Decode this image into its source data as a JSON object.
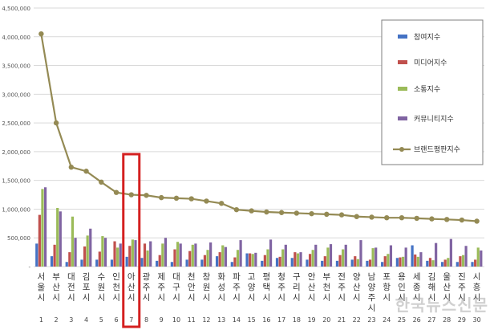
{
  "chart_data": {
    "type": "bar",
    "title": "",
    "xlabel": "",
    "ylabel": "",
    "ylim": [
      0,
      4500000
    ],
    "yticks": [
      0,
      500000,
      1000000,
      1500000,
      2000000,
      2500000,
      3000000,
      3500000,
      4000000,
      4500000
    ],
    "ytick_labels": [
      "-",
      "500,000",
      "1,000,000",
      "1,500,000",
      "2,000,000",
      "2,500,000",
      "3,000,000",
      "3,500,000",
      "4,000,000",
      "4,500,000"
    ],
    "grid": true,
    "legend_position": "top-right",
    "categories": [
      "서울시",
      "부산시",
      "대전시",
      "김포시",
      "수원시",
      "인천시",
      "아산시",
      "광주시",
      "제주시",
      "대구시",
      "천안시",
      "창원시",
      "화성시",
      "파주시",
      "고양시",
      "평택시",
      "청주시",
      "구리시",
      "안산시",
      "부천시",
      "전주시",
      "양산시",
      "남양주시",
      "포항시",
      "용인시",
      "세종시",
      "김해시",
      "울산시",
      "진주시",
      "시흥시"
    ],
    "ranks": [
      "1",
      "2",
      "3",
      "4",
      "5",
      "6",
      "7",
      "8",
      "9",
      "10",
      "11",
      "12",
      "13",
      "14",
      "15",
      "16",
      "17",
      "18",
      "19",
      "20",
      "21",
      "22",
      "23",
      "24",
      "25",
      "26",
      "27",
      "28",
      "29",
      "30"
    ],
    "highlight_rank": "7",
    "series": [
      {
        "name": "참여지수",
        "type": "bar",
        "color": "#4472c4",
        "values": [
          400000,
          180000,
          80000,
          120000,
          120000,
          120000,
          170000,
          150000,
          100000,
          80000,
          120000,
          120000,
          180000,
          80000,
          230000,
          100000,
          150000,
          150000,
          120000,
          100000,
          100000,
          120000,
          100000,
          80000,
          150000,
          370000,
          100000,
          80000,
          80000,
          80000
        ]
      },
      {
        "name": "미디어지수",
        "type": "bar",
        "color": "#c0504d",
        "values": [
          900000,
          380000,
          250000,
          350000,
          260000,
          440000,
          360000,
          400000,
          200000,
          300000,
          270000,
          200000,
          250000,
          160000,
          230000,
          200000,
          170000,
          250000,
          220000,
          180000,
          200000,
          180000,
          120000,
          180000,
          160000,
          210000,
          150000,
          120000,
          180000,
          120000
        ]
      },
      {
        "name": "소통지수",
        "type": "bar",
        "color": "#9bbb59",
        "values": [
          1350000,
          1020000,
          870000,
          540000,
          530000,
          330000,
          470000,
          280000,
          400000,
          430000,
          380000,
          290000,
          370000,
          290000,
          220000,
          300000,
          300000,
          230000,
          290000,
          330000,
          300000,
          130000,
          320000,
          220000,
          170000,
          170000,
          110000,
          150000,
          200000,
          330000
        ]
      },
      {
        "name": "커뮤니티지수",
        "type": "bar",
        "color": "#8064a2",
        "values": [
          1380000,
          960000,
          500000,
          660000,
          500000,
          400000,
          460000,
          440000,
          500000,
          400000,
          400000,
          420000,
          340000,
          460000,
          240000,
          470000,
          380000,
          250000,
          380000,
          390000,
          380000,
          460000,
          330000,
          370000,
          330000,
          250000,
          410000,
          480000,
          360000,
          280000
        ]
      },
      {
        "name": "브랜드평판지수",
        "type": "line",
        "color": "#948a54",
        "values": [
          4050000,
          2500000,
          1730000,
          1660000,
          1470000,
          1290000,
          1250000,
          1240000,
          1200000,
          1190000,
          1180000,
          1140000,
          1100000,
          990000,
          970000,
          950000,
          940000,
          930000,
          920000,
          910000,
          900000,
          870000,
          860000,
          850000,
          850000,
          840000,
          830000,
          820000,
          810000,
          790000
        ]
      }
    ]
  },
  "watermark": "한국뉴스신문"
}
